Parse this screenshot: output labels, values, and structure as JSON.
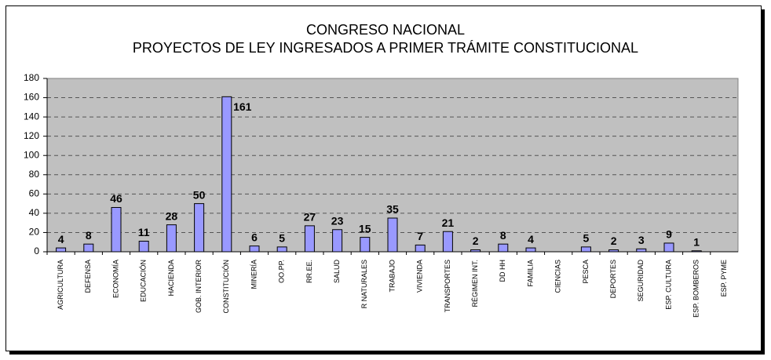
{
  "chart_data": {
    "type": "bar",
    "title": "CONGRESO NACIONAL",
    "subtitle": "PROYECTOS DE LEY  INGRESADOS A PRIMER TRÁMITE CONSTITUCIONAL",
    "categories": [
      "AGRICULTURA",
      "DEFENSA",
      "ECONOMÍA",
      "EDUCACIÓN",
      "HACIENDA",
      "GOB. INTERIOR",
      "CONSTITUCIÓN",
      "MINERÍA",
      "OO.PP.",
      "RR.EE.",
      "SALUD",
      "R NATURALES",
      "TRABAJO",
      "VIVIENDA",
      "TRANSPORTES",
      "RÉGIMEN INT.",
      "DD HH",
      "FAMILIA",
      "CIENCIAS",
      "PESCA",
      "DEPORTES",
      "SEGURIDAD",
      "ESP. CULTURA",
      "ESP. BOMBEROS",
      "ESP. PYME"
    ],
    "values": [
      4,
      8,
      46,
      11,
      28,
      50,
      161,
      6,
      5,
      27,
      23,
      15,
      35,
      7,
      21,
      2,
      8,
      4,
      null,
      5,
      2,
      3,
      9,
      1,
      null
    ],
    "color": "#9999ff",
    "ylim": [
      0,
      180
    ],
    "yticks": [
      0,
      20,
      40,
      60,
      80,
      100,
      120,
      140,
      160,
      180
    ],
    "grid": true
  }
}
